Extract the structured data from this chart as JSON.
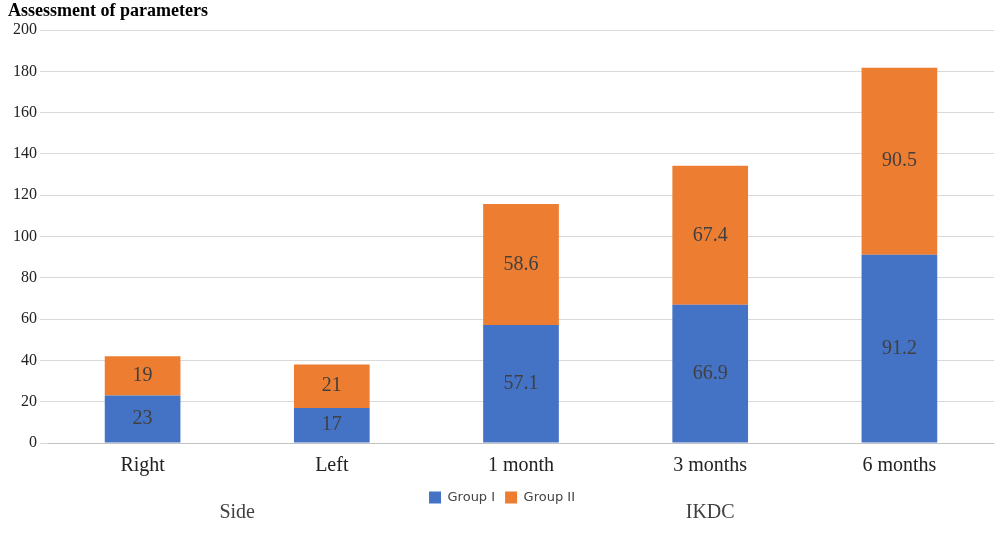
{
  "chart_data": {
    "type": "bar",
    "title": "Assessment of parameters",
    "categories": [
      "Right",
      "Left",
      "1 month",
      "3 months",
      "6 months"
    ],
    "stacked": true,
    "data_labels": true,
    "series": [
      {
        "name": "Group I",
        "color": "#4472c4",
        "values": [
          23,
          17,
          57.1,
          66.9,
          91.2
        ]
      },
      {
        "name": "Group II",
        "color": "#ed7d31",
        "values": [
          19,
          21,
          58.6,
          67.4,
          90.5
        ]
      }
    ],
    "ylim": [
      0,
      200
    ],
    "yticks": [
      0,
      20,
      40,
      60,
      80,
      100,
      120,
      140,
      160,
      180,
      200
    ],
    "grid": "y",
    "legend": "bottom",
    "annotations": [
      "Side",
      "IKDC"
    ]
  }
}
